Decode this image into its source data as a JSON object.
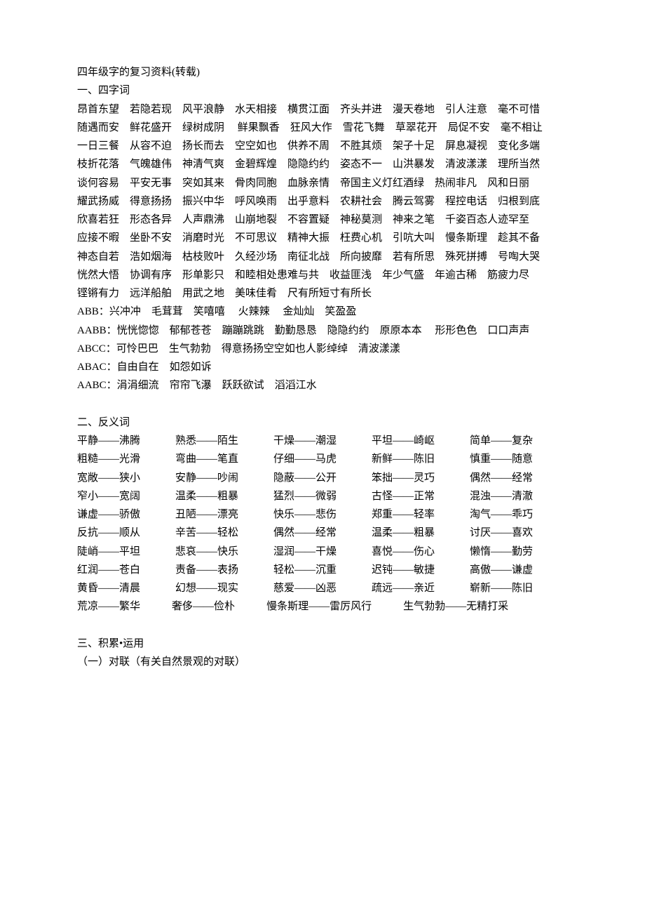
{
  "title": "四年级字的复习资料(转载)",
  "section1": {
    "header": "一、四字词",
    "lines": [
      "昂首东望　若隐若现　风平浪静　水天相接　横贯江面　齐头并进　漫天卷地　引人注意　毫不可惜",
      "随遇而安　鲜花盛开　绿树成阴　 鲜果飘香　狂风大作　雪花飞舞　草翠花开　局促不安　毫不相让",
      "一日三餐　从容不迫　扬长而去　空空如也　供养不周　不胜其烦　架子十足　屏息凝视　变化多端",
      "枝折花落　气魄雄伟　神清气爽　金碧辉煌　隐隐约约　姿态不一　山洪暴发　清波漾漾　理所当然",
      "谈何容易　平安无事　突如其来　骨肉同胞　血脉亲情　帝国主义灯红酒绿　热闹非凡　风和日丽",
      "耀武扬威　得意扬扬　振兴中华　呼风唤雨　出乎意料　农耕社会　腾云驾雾　程控电话　归根到底",
      "欣喜若狂　形态各异　人声鼎沸　山崩地裂　不容置疑　神秘莫测　神来之笔　千姿百态人迹罕至",
      "应接不暇　坐卧不安　消磨时光　不可思议　精神大振　枉费心机　引吭大叫　慢条斯理　趁其不备",
      "神态自若　浩如烟海　枯枝败叶　久经沙场　南征北战　所向披靡　若有所思　殊死拼搏　号啕大哭",
      "恍然大悟　协调有序　形单影只　和睦相处患难与共　收益匪浅　年少气盛　年逾古稀　筋疲力尽",
      "铿锵有力　远洋船舶　用武之地　美味佳肴　尺有所短寸有所长"
    ],
    "patterns": [
      "ABB：兴冲冲　毛茸茸　笑嘻嘻　 火辣辣　 金灿灿　笑盈盈",
      "AABB：恍恍惚惚　郁郁苍苍　蹦蹦跳跳　勤勤恳恳　隐隐约约　原原本本　 形形色色　口口声声",
      "ABCC：可怜巴巴　生气勃勃　得意扬扬空空如也人影绰绰　清波漾漾",
      "ABAC：自由自在　如怨如诉",
      "AABC：涓涓细流　帘帘飞瀑　跃跃欲试　滔滔江水"
    ]
  },
  "section2": {
    "header": "二、反义词",
    "rows": [
      [
        "平静——沸腾",
        "熟悉——陌生",
        "干燥——潮湿",
        "平坦——崎岖",
        "简单——复杂"
      ],
      [
        "粗糙——光滑",
        "弯曲——笔直",
        "仔细——马虎",
        "新鲜——陈旧",
        "慎重——随意"
      ],
      [
        "宽敞——狭小",
        "安静——吵闹",
        "隐蔽——公开",
        "笨拙——灵巧",
        "偶然——经常"
      ],
      [
        "窄小——宽阔",
        "温柔——粗暴",
        "猛烈——微弱",
        "古怪——正常",
        "混浊——清澈"
      ],
      [
        "谦虚——骄傲",
        "丑陋——漂亮",
        "快乐——悲伤",
        "郑重——轻率",
        "淘气——乖巧"
      ],
      [
        "反抗——顺从",
        "辛苦——轻松",
        "偶然——经常",
        "温柔——粗暴",
        "讨厌——喜欢"
      ],
      [
        "陡峭——平坦",
        "悲哀——快乐",
        "湿润——干燥",
        "喜悦——伤心",
        "懒惰——勤劳"
      ],
      [
        "红润——苍白",
        "责备——表扬",
        "轻松——沉重",
        "迟钝——敏捷",
        "高傲——谦虚"
      ],
      [
        "黄昏——清晨",
        "幻想——现实",
        "慈爱——凶恶",
        "疏远——亲近",
        "崭新——陈旧"
      ]
    ],
    "lastRow": [
      "荒凉——繁华",
      "奢侈——俭朴",
      "慢条斯理——雷厉风行",
      "生气勃勃——无精打采"
    ]
  },
  "section3": {
    "header": "三、积累•运用",
    "sub1": "（一）对联（有关自然景观的对联）"
  }
}
